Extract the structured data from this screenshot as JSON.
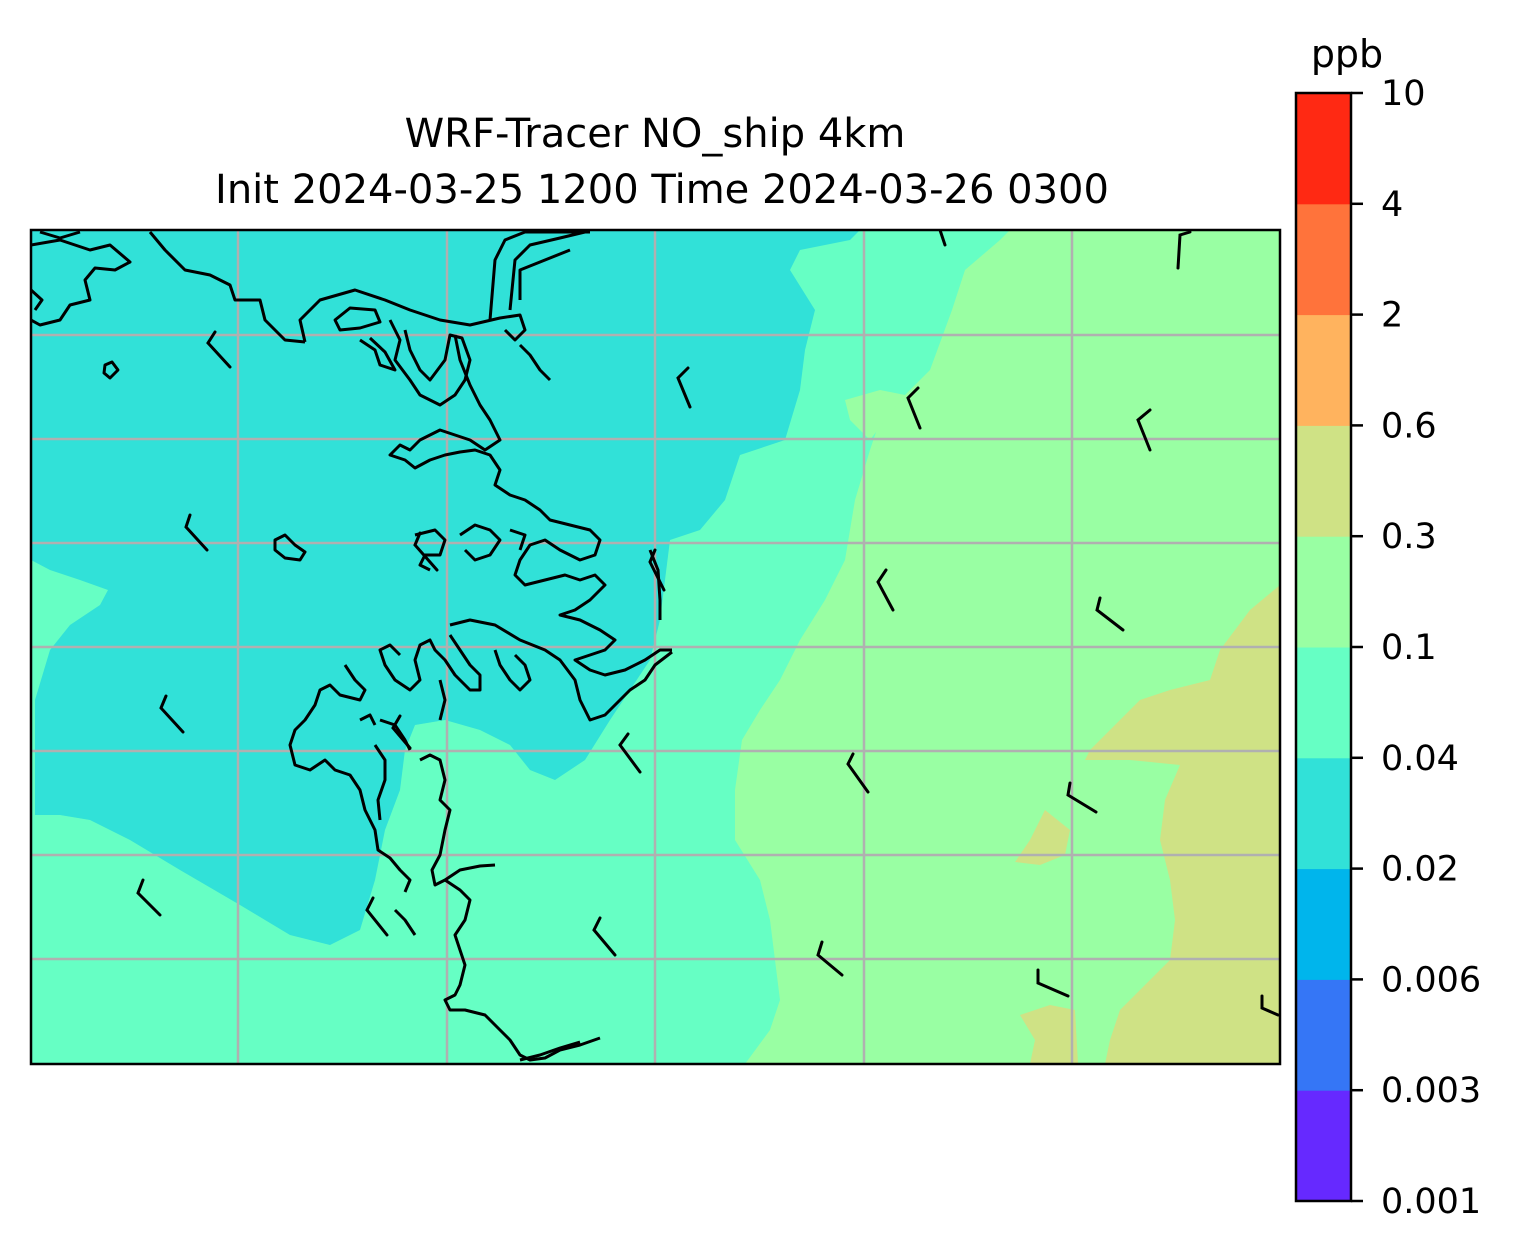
{
  "title": {
    "line1": "WRF-Tracer NO_ship 4km",
    "line2": "Init 2024-03-25 1200 Time 2024-03-26 0300"
  },
  "colorbar": {
    "unit": "ppb",
    "ticks": [
      "0.001",
      "0.003",
      "0.006",
      "0.02",
      "0.04",
      "0.1",
      "0.3",
      "0.6",
      "2",
      "4",
      "10"
    ],
    "colors": [
      "#6629ff",
      "#3576f6",
      "#00b5ec",
      "#31e1d8",
      "#66ffc4",
      "#99ffa3",
      "#cfe285",
      "#ffb35e",
      "#ff733b",
      "#ff2913"
    ]
  },
  "chart_data": {
    "type": "heatmap",
    "title": "WRF-Tracer NO_ship 4km / Init 2024-03-25 1200 Time 2024-03-26 0300",
    "colorbar_label": "ppb",
    "levels": [
      0.001,
      0.003,
      0.006,
      0.02,
      0.04,
      0.1,
      0.3,
      0.6,
      2,
      4,
      10
    ],
    "field_summary": {
      "west_land": "0.02-0.04",
      "southwest_and_center": "0.04-0.1",
      "east": "0.1-0.3",
      "southeast_corner": "0.3-0.6"
    },
    "gridlines": true,
    "wind_barbs": true,
    "coastlines": true
  }
}
